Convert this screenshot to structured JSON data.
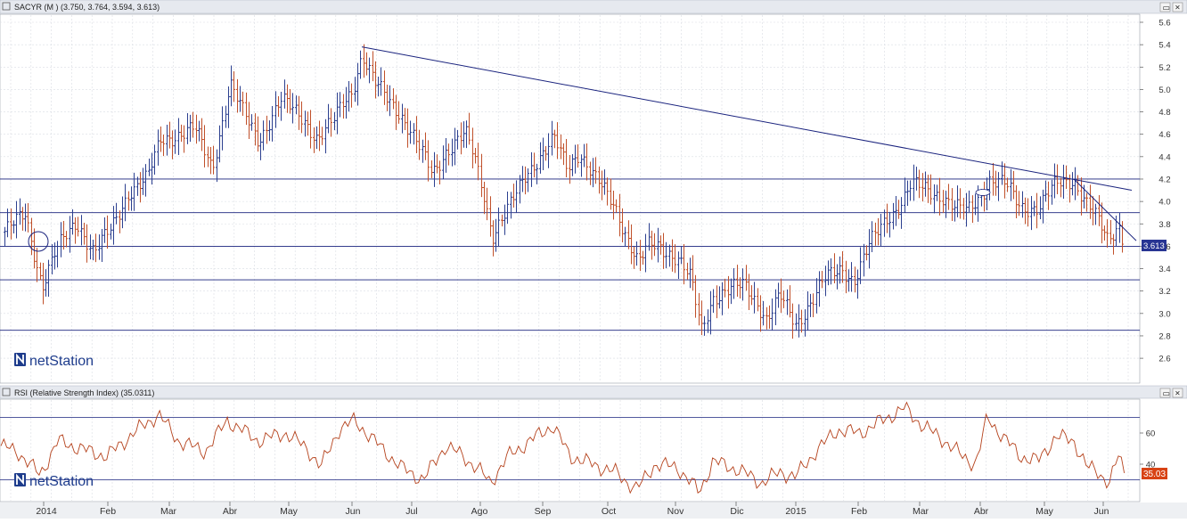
{
  "main_panel": {
    "title": "SACYR (M ) (3.750, 3.764, 3.594, 3.613)",
    "last_price_badge": "3.613",
    "brand": "netStation",
    "y_ticks": [
      "5.6",
      "5.4",
      "5.2",
      "5.0",
      "4.8",
      "4.6",
      "4.4",
      "4.2",
      "4.0",
      "3.8",
      "3.6",
      "3.4",
      "3.2",
      "3.0",
      "2.8",
      "2.6"
    ]
  },
  "rsi_panel": {
    "title": "RSI (Relative Strength Index) (35.0311)",
    "last_value_badge": "35.03",
    "brand": "netStation",
    "y_ticks": [
      "60",
      "40"
    ]
  },
  "x_axis": {
    "labels": [
      "2014",
      "Feb",
      "Mar",
      "Abr",
      "May",
      "Jun",
      "Jul",
      "Ago",
      "Sep",
      "Oct",
      "Nov",
      "Dic",
      "2015",
      "Feb",
      "Mar",
      "Abr",
      "May",
      "Jun"
    ]
  },
  "window_controls": {
    "restore_glyph": "▭",
    "close_glyph": "×"
  },
  "colors": {
    "up_bar": "#2b3f8f",
    "down_bar": "#c0502a",
    "trend_line": "#1a237e",
    "rsi_line": "#b5421c",
    "price_badge_bg": "#283593",
    "rsi_badge_bg": "#d84315",
    "brand_icon": "#1e3c8c"
  },
  "chart_data": [
    {
      "type": "ohlc",
      "title": "SACYR (M ) (3.750, 3.764, 3.594, 3.613)",
      "last_close": 3.613,
      "ylim": [
        2.4,
        5.7
      ],
      "y_ticks": [
        5.6,
        5.4,
        5.2,
        5.0,
        4.8,
        4.6,
        4.4,
        4.2,
        4.0,
        3.8,
        3.6,
        3.4,
        3.2,
        3.0,
        2.8,
        2.6
      ],
      "x_labels": [
        "2014",
        "Feb",
        "Mar",
        "Abr",
        "May",
        "Jun",
        "Jul",
        "Ago",
        "Sep",
        "Oct",
        "Nov",
        "Dic",
        "2015",
        "Feb",
        "Mar",
        "Abr",
        "May",
        "Jun"
      ],
      "close_series_approx": [
        [
          "2014",
          3.7
        ],
        [
          "Feb",
          3.75
        ],
        [
          "Mar",
          4.45
        ],
        [
          "Abr",
          4.75
        ],
        [
          "May",
          4.65
        ],
        [
          "Jun",
          5.0
        ],
        [
          "Jul",
          4.35
        ],
        [
          "Ago",
          4.15
        ],
        [
          "Sep",
          4.4
        ],
        [
          "Oct",
          3.95
        ],
        [
          "Nov",
          3.3
        ],
        [
          "Dic",
          3.2
        ],
        [
          "2015",
          3.05
        ],
        [
          "Feb",
          3.65
        ],
        [
          "Mar",
          4.1
        ],
        [
          "Abr",
          4.1
        ],
        [
          "May",
          4.1
        ],
        [
          "Jun",
          3.613
        ]
      ],
      "horizontal_lines": [
        4.2,
        3.9,
        3.6,
        3.3,
        2.85
      ],
      "trend_lines": [
        {
          "from": [
            "Jun",
            5.38
          ],
          "to": [
            "Jun",
            4.1
          ]
        },
        {
          "from": [
            "May",
            4.2
          ],
          "to": [
            "Jun",
            3.65
          ]
        }
      ]
    },
    {
      "type": "line",
      "title": "RSI (Relative Strength Index) (35.0311)",
      "last_value": 35.0311,
      "y_ticks": [
        60,
        40
      ],
      "horizontal_lines": [
        70,
        30
      ],
      "values_approx": [
        [
          "2014",
          45
        ],
        [
          "Feb",
          55
        ],
        [
          "Mar",
          62
        ],
        [
          "Abr",
          58
        ],
        [
          "May",
          56
        ],
        [
          "Jun",
          60
        ],
        [
          "Jul",
          45
        ],
        [
          "Ago",
          40
        ],
        [
          "Sep",
          58
        ],
        [
          "Oct",
          42
        ],
        [
          "Nov",
          33
        ],
        [
          "Dic",
          38
        ],
        [
          "2015",
          40
        ],
        [
          "Feb",
          60
        ],
        [
          "Mar",
          70
        ],
        [
          "Abr",
          58
        ],
        [
          "May",
          55
        ],
        [
          "Jun",
          35.03
        ]
      ]
    }
  ]
}
